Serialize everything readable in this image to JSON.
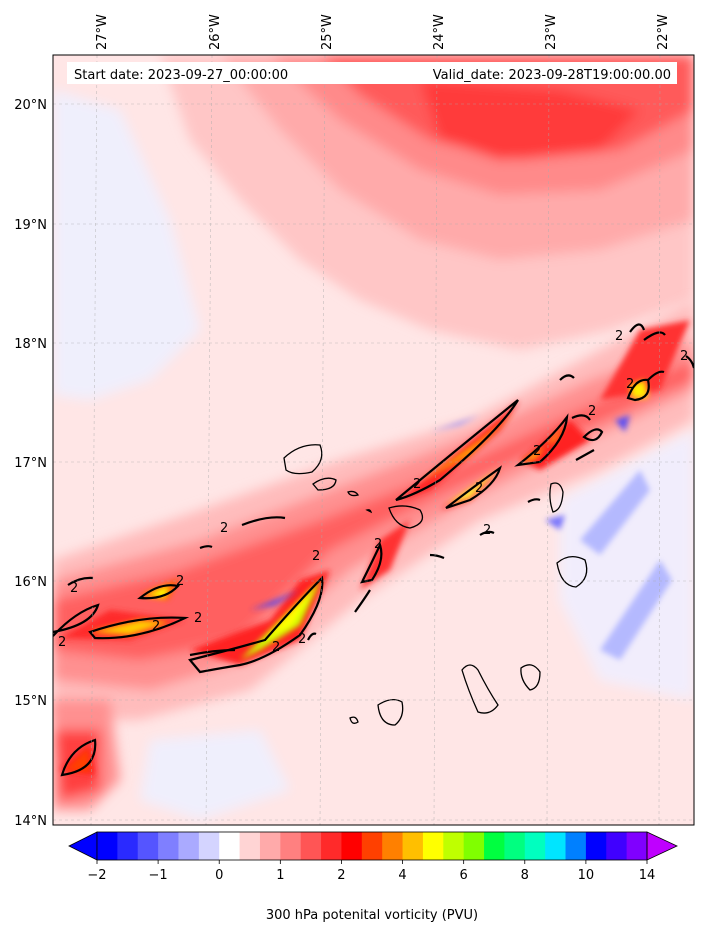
{
  "map": {
    "start_label": "Start date: 2023-09-27_00:00:00",
    "valid_label": "Valid_date: 2023-09-28T19:00:00.00",
    "lon_labels": [
      "27°W",
      "26°W",
      "25°W",
      "24°W",
      "23°W",
      "22°W"
    ],
    "lat_labels": [
      "20°N",
      "19°N",
      "18°N",
      "17°N",
      "16°N",
      "15°N",
      "14°N"
    ],
    "contour_label": "2"
  },
  "colorbar": {
    "title": "300 hPa potenital vorticity (PVU)",
    "ticks": [
      "−2",
      "−1",
      "0",
      "1",
      "2",
      "4",
      "6",
      "8",
      "10",
      "14"
    ],
    "colors": [
      "#0000ff",
      "#2a2aff",
      "#5555ff",
      "#7f7fff",
      "#aaaaff",
      "#d4d4ff",
      "#ffffff",
      "#ffd4d4",
      "#ffaaaa",
      "#ff8080",
      "#ff5555",
      "#ff2a2a",
      "#ff0000",
      "#ff4000",
      "#ff8000",
      "#ffbf00",
      "#ffff00",
      "#bfff00",
      "#80ff00",
      "#00ff40",
      "#00ff80",
      "#00ffbf",
      "#00e5ff",
      "#0080ff",
      "#0000ff",
      "#4000ff",
      "#8000ff"
    ],
    "under_color": "#0000ff",
    "over_color": "#bf00ff"
  }
}
